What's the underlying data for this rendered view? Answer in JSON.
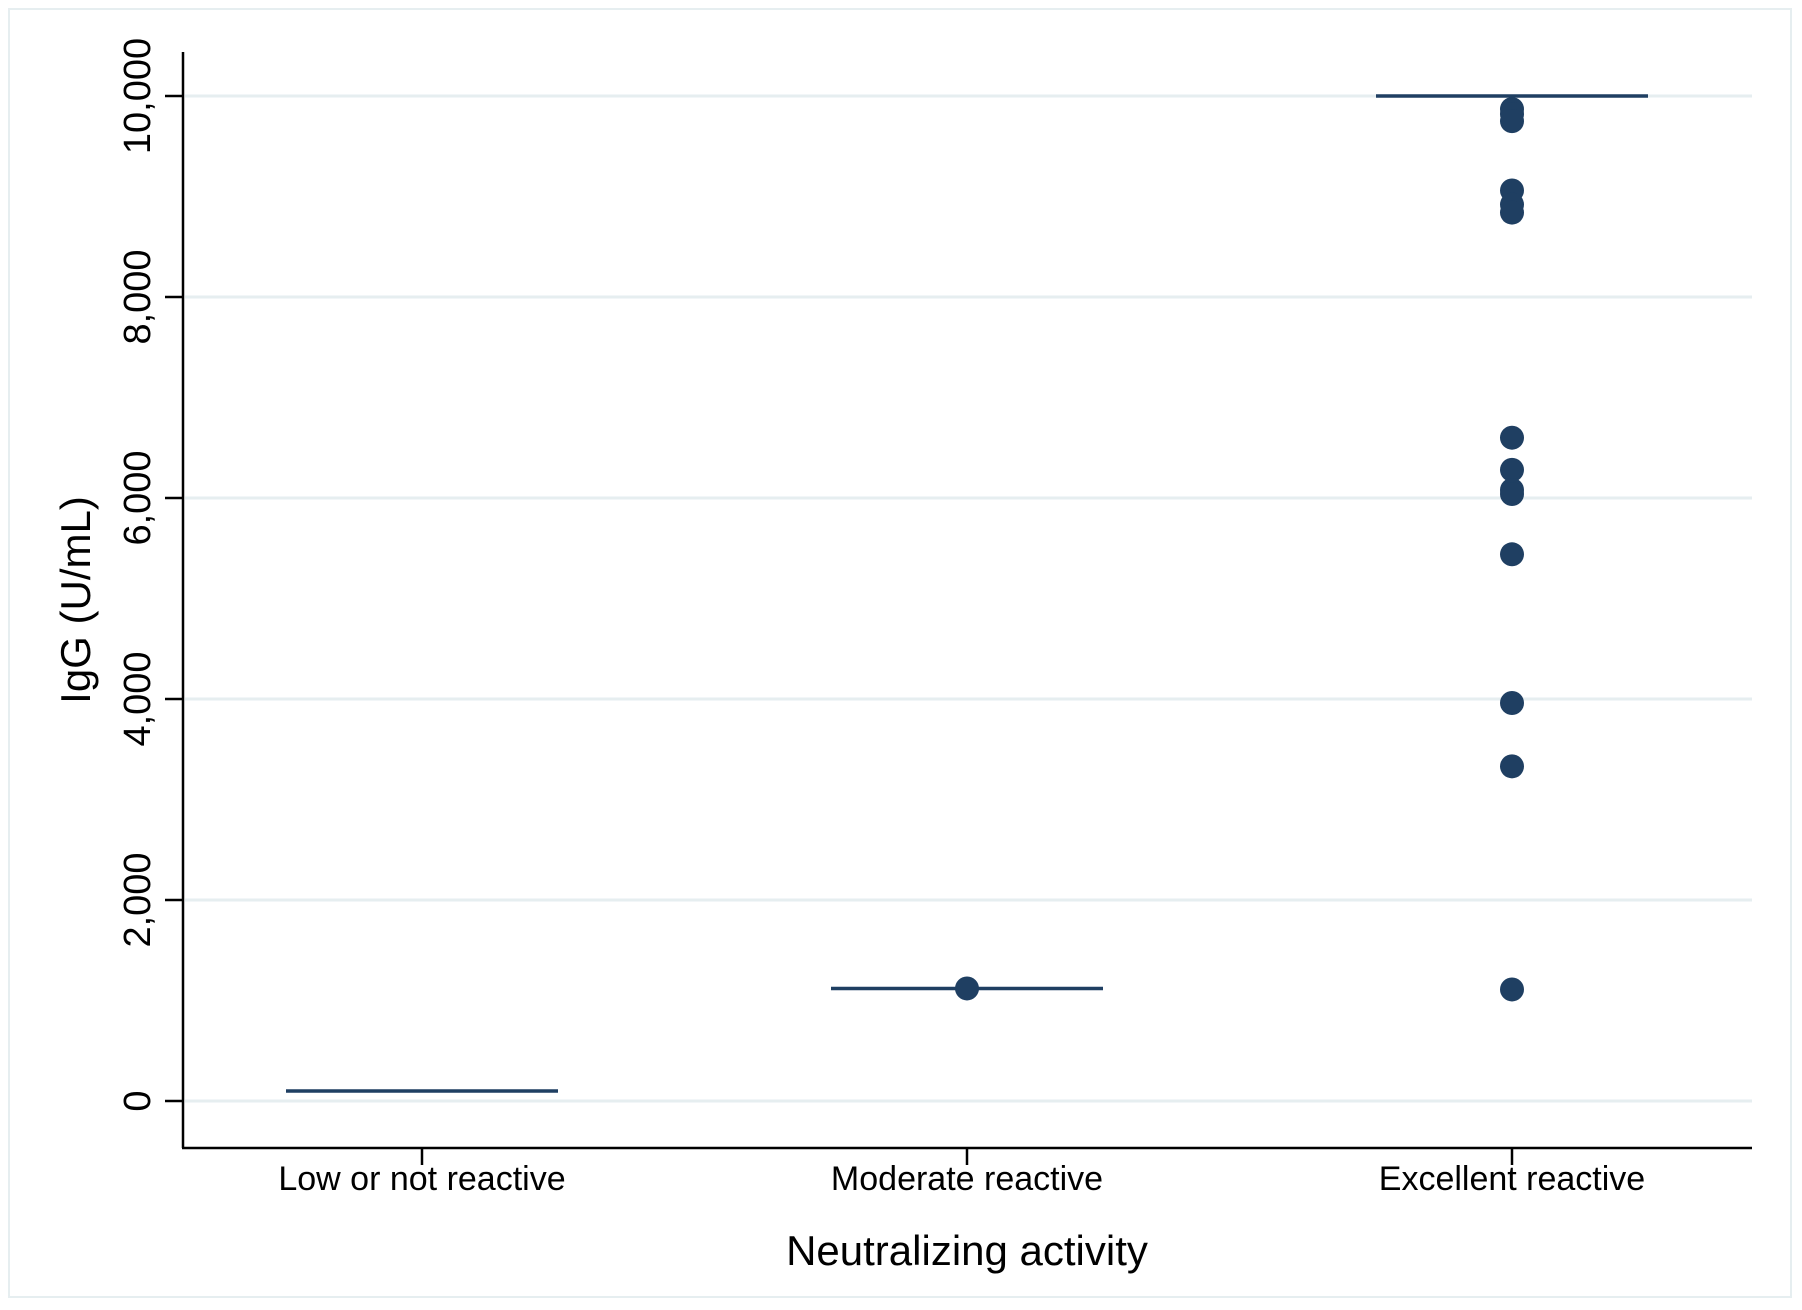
{
  "chart_data": {
    "type": "scatter",
    "title": "",
    "xlabel": "Neutralizing activity",
    "ylabel": "IgG (U/mL)",
    "categories": [
      "Low or not reactive",
      "Moderate reactive",
      "Excellent reactive"
    ],
    "ylim": [
      -450,
      10450
    ],
    "yticks": [
      0,
      2000,
      4000,
      6000,
      8000,
      10000
    ],
    "ytick_labels": [
      "0",
      "2,000",
      "4,000",
      "6,000",
      "8,000",
      "10,000"
    ],
    "grid": true,
    "points": [
      {
        "category": "Moderate reactive",
        "values": [
          1120
        ]
      },
      {
        "category": "Excellent reactive",
        "values": [
          9870,
          9820,
          9750,
          9060,
          8920,
          8840,
          6600,
          6280,
          6080,
          6040,
          5440,
          3960,
          3330,
          1110
        ]
      }
    ],
    "medians": [
      {
        "category": "Low or not reactive",
        "value": 100
      },
      {
        "category": "Moderate reactive",
        "value": 1120
      },
      {
        "category": "Excellent reactive",
        "value": 10000
      }
    ],
    "colors": {
      "marker": "#1f3f62",
      "median_line": "#1f3f62",
      "grid": "#e6eef0",
      "frame": "#e6eef0"
    }
  }
}
